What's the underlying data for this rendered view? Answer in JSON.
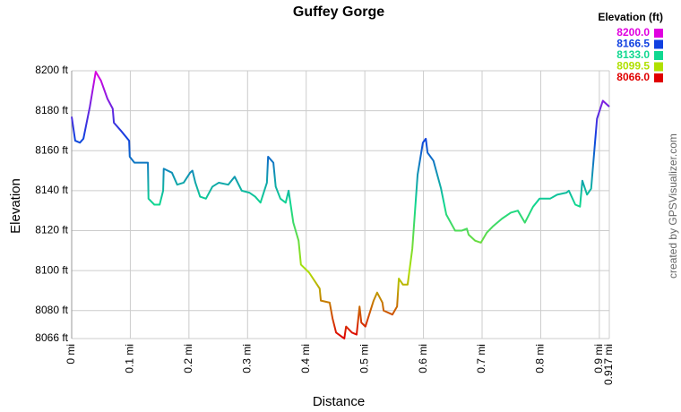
{
  "chart_data": {
    "type": "line",
    "title": "Guffey Gorge",
    "xlabel": "Distance",
    "ylabel": "Elevation",
    "watermark": "created by GPSVisualizer.com",
    "x": [
      0,
      0.006,
      0.014,
      0.02,
      0.031,
      0.041,
      0.05,
      0.061,
      0.07,
      0.072,
      0.084,
      0.098,
      0.099,
      0.107,
      0.13,
      0.131,
      0.141,
      0.15,
      0.156,
      0.157,
      0.171,
      0.18,
      0.191,
      0.202,
      0.206,
      0.211,
      0.219,
      0.229,
      0.24,
      0.251,
      0.267,
      0.278,
      0.29,
      0.303,
      0.313,
      0.322,
      0.333,
      0.335,
      0.344,
      0.348,
      0.356,
      0.365,
      0.37,
      0.374,
      0.378,
      0.387,
      0.391,
      0.405,
      0.423,
      0.425,
      0.44,
      0.445,
      0.451,
      0.465,
      0.468,
      0.478,
      0.486,
      0.491,
      0.494,
      0.501,
      0.515,
      0.521,
      0.53,
      0.532,
      0.547,
      0.555,
      0.558,
      0.565,
      0.573,
      0.581,
      0.59,
      0.599,
      0.604,
      0.607,
      0.617,
      0.63,
      0.639,
      0.654,
      0.665,
      0.674,
      0.677,
      0.688,
      0.698,
      0.708,
      0.718,
      0.734,
      0.749,
      0.761,
      0.773,
      0.787,
      0.798,
      0.816,
      0.828,
      0.844,
      0.848,
      0.859,
      0.867,
      0.871,
      0.879,
      0.886,
      0.896,
      0.906,
      0.917
    ],
    "values": [
      8177,
      8165,
      8164,
      8166,
      8182,
      8199.5,
      8195,
      8186,
      8181,
      8174,
      8170,
      8165,
      8157,
      8154,
      8154,
      8136,
      8133,
      8133,
      8140,
      8151,
      8149,
      8143,
      8144,
      8149,
      8150,
      8144,
      8137,
      8136,
      8142,
      8144,
      8143,
      8147,
      8140,
      8139,
      8137,
      8134,
      8144,
      8157,
      8154,
      8142,
      8136,
      8134,
      8140,
      8132,
      8124,
      8115,
      8103,
      8099,
      8091,
      8085,
      8084,
      8076,
      8069,
      8066,
      8072,
      8069,
      8068,
      8082,
      8074,
      8072,
      8085,
      8089,
      8084,
      8080,
      8078,
      8082,
      8096,
      8093,
      8093,
      8111,
      8148,
      8164,
      8166,
      8159,
      8155,
      8141,
      8128,
      8120,
      8120,
      8121,
      8118,
      8115,
      8114,
      8119,
      8122,
      8126,
      8129,
      8130,
      8124,
      8132,
      8136,
      8136,
      8138,
      8139,
      8140,
      8133,
      8132,
      8145,
      8138,
      8141,
      8176,
      8185,
      8182
    ],
    "xlim": [
      0,
      0.917
    ],
    "xticks": [
      {
        "value": 0,
        "label": "0 mi"
      },
      {
        "value": 0.1,
        "label": "0.1 mi"
      },
      {
        "value": 0.2,
        "label": "0.2 mi"
      },
      {
        "value": 0.3,
        "label": "0.3 mi"
      },
      {
        "value": 0.4,
        "label": "0.4 mi"
      },
      {
        "value": 0.5,
        "label": "0.5 mi"
      },
      {
        "value": 0.6,
        "label": "0.6 mi"
      },
      {
        "value": 0.7,
        "label": "0.7 mi"
      },
      {
        "value": 0.8,
        "label": "0.8 mi"
      },
      {
        "value": 0.9,
        "label": "0.9 mi"
      },
      {
        "value": 0.917,
        "label": "0.917 mi"
      }
    ],
    "ylim": [
      8066,
      8200
    ],
    "yticks": [
      {
        "value": 8066,
        "label": "8066 ft"
      },
      {
        "value": 8080,
        "label": "8080 ft"
      },
      {
        "value": 8100,
        "label": "8100 ft"
      },
      {
        "value": 8120,
        "label": "8120 ft"
      },
      {
        "value": 8140,
        "label": "8140 ft"
      },
      {
        "value": 8160,
        "label": "8160 ft"
      },
      {
        "value": 8180,
        "label": "8180 ft"
      },
      {
        "value": 8200,
        "label": "8200 ft"
      }
    ],
    "grid": true,
    "color_scale_title": "Elevation (ft)",
    "color_scale": [
      {
        "value": 8200,
        "label": "8200.0",
        "color": "#e000e0"
      },
      {
        "value": 8166.5,
        "label": "8166.5",
        "color": "#1040e0"
      },
      {
        "value": 8133,
        "label": "8133.0",
        "color": "#10d890"
      },
      {
        "value": 8099.5,
        "label": "8099.5",
        "color": "#b0e000"
      },
      {
        "value": 8066,
        "label": "8066.0",
        "color": "#e00000"
      }
    ]
  }
}
